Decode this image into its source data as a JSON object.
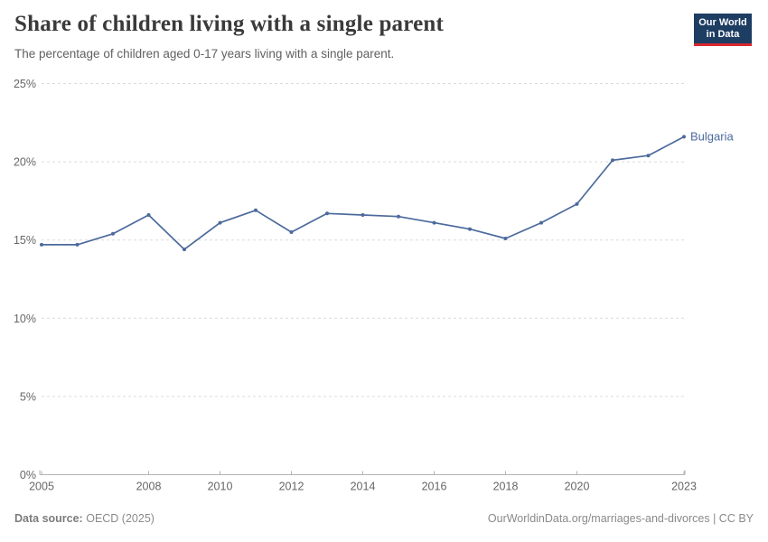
{
  "header": {
    "logo": {
      "line1": "Our World",
      "line2": "in Data",
      "background_color": "#1d3d63",
      "stripe_color": "#d7282f"
    }
  },
  "chart_data": {
    "type": "line",
    "title": "Share of children living with a single parent",
    "subtitle": "The percentage of children aged 0-17 years living with a single parent.",
    "x": [
      2005,
      2006,
      2007,
      2008,
      2009,
      2010,
      2011,
      2012,
      2013,
      2014,
      2015,
      2016,
      2017,
      2018,
      2019,
      2020,
      2021,
      2022,
      2023
    ],
    "series": [
      {
        "name": "Bulgaria",
        "color": "#4c6a9c",
        "values": [
          14.7,
          14.7,
          15.4,
          16.6,
          14.4,
          16.1,
          16.9,
          15.5,
          16.7,
          16.6,
          16.5,
          16.1,
          15.7,
          15.1,
          16.1,
          17.3,
          20.1,
          20.4,
          21.6
        ]
      }
    ],
    "xlabel": "",
    "ylabel": "",
    "xlim": [
      2005,
      2023
    ],
    "ylim": [
      0,
      25
    ],
    "x_ticks": [
      2005,
      2008,
      2010,
      2012,
      2014,
      2016,
      2018,
      2020,
      2023
    ],
    "y_ticks": [
      0,
      5,
      10,
      15,
      20,
      25
    ],
    "y_unit": "%",
    "grid": true,
    "gridline_color": "#dcdcdc",
    "axis_color": "#b3b3b3",
    "tick_label_color": "#666666",
    "legend_position": "end-of-line label"
  },
  "footer": {
    "datasource_label": "Data source:",
    "datasource_value": "OECD (2025)",
    "url": "OurWorldinData.org/marriages-and-divorces",
    "separator": " | ",
    "license": "CC BY"
  }
}
